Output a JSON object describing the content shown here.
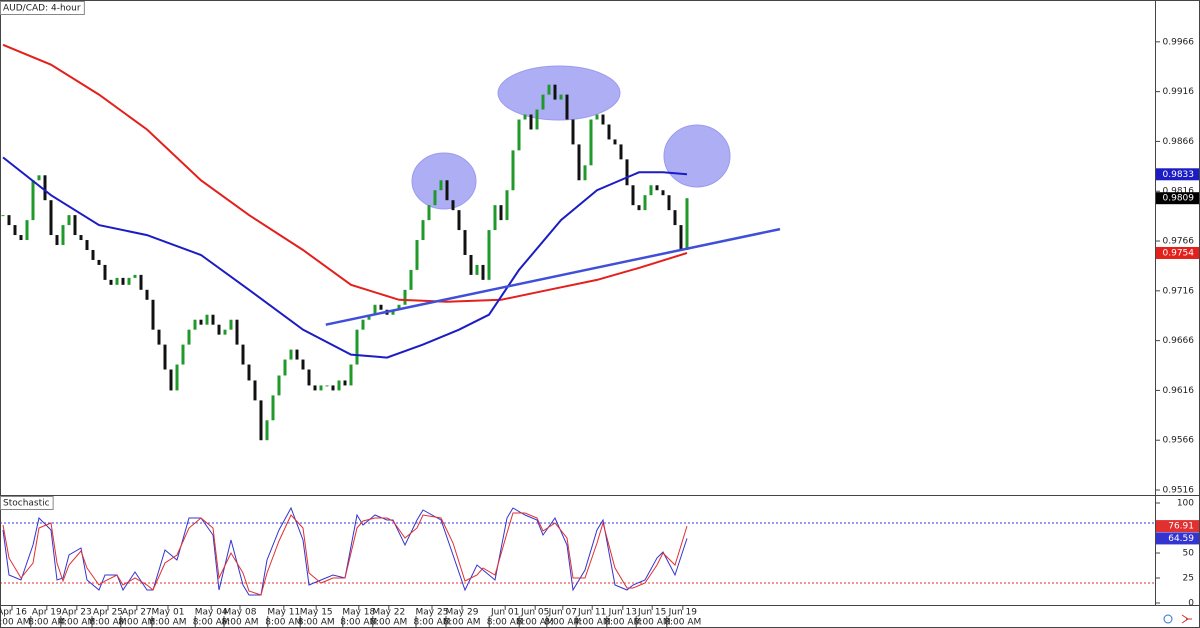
{
  "chart_data": [
    {
      "type": "candlestick",
      "title": "AUD/CAD: 4-hour",
      "close": [
        0.9792,
        0.9782,
        0.9772,
        0.9767,
        0.9787,
        0.9827,
        0.9832,
        0.9807,
        0.9772,
        0.9762,
        0.9782,
        0.9792,
        0.9772,
        0.9767,
        0.9757,
        0.9747,
        0.9742,
        0.9727,
        0.9722,
        0.9729,
        0.9722,
        0.9729,
        0.9732,
        0.9717,
        0.9707,
        0.9677,
        0.9662,
        0.9637,
        0.9616,
        0.9642,
        0.9662,
        0.9677,
        0.9687,
        0.9682,
        0.9692,
        0.9682,
        0.9672,
        0.9677,
        0.9687,
        0.9662,
        0.9642,
        0.9626,
        0.9606,
        0.9566,
        0.9586,
        0.9611,
        0.9631,
        0.9647,
        0.9657,
        0.9647,
        0.9637,
        0.9621,
        0.9616,
        0.9621,
        0.9621,
        0.9616,
        0.9626,
        0.9621,
        0.9642,
        0.9677,
        0.9687,
        0.9692,
        0.9702,
        0.9697,
        0.9692,
        0.9697,
        0.9702,
        0.9717,
        0.9737,
        0.9767,
        0.9787,
        0.9802,
        0.9817,
        0.9827,
        0.9807,
        0.9797,
        0.9777,
        0.9752,
        0.9732,
        0.9742,
        0.9727,
        0.9777,
        0.9802,
        0.9787,
        0.9817,
        0.9857,
        0.9888,
        0.9893,
        0.9878,
        0.9898,
        0.9913,
        0.9923,
        0.9908,
        0.9913,
        0.9888,
        0.9863,
        0.9827,
        0.9842,
        0.9888,
        0.9893,
        0.9883,
        0.9868,
        0.9863,
        0.9848,
        0.9822,
        0.9802,
        0.9797,
        0.9812,
        0.9822,
        0.9817,
        0.9812,
        0.9797,
        0.9782,
        0.9757,
        0.9809
      ],
      "up_color": "#1f9a2a",
      "down_color": "#111111",
      "series": [
        {
          "color": "#e3201b",
          "x": [
            0,
            8,
            16,
            24,
            33,
            41,
            50,
            58,
            66,
            74,
            83,
            91,
            99,
            106,
            114
          ],
          "values": [
            0.9963,
            0.9943,
            0.9913,
            0.9878,
            0.9827,
            0.9792,
            0.9757,
            0.9722,
            0.9707,
            0.9705,
            0.9707,
            0.9717,
            0.9727,
            0.9739,
            0.9754
          ]
        },
        {
          "color": "#1c1cc4",
          "x": [
            0,
            8,
            16,
            24,
            33,
            41,
            50,
            58,
            64,
            70,
            76,
            81,
            86,
            93,
            99,
            106,
            110,
            114
          ],
          "values": [
            0.985,
            0.9812,
            0.9782,
            0.9772,
            0.9752,
            0.9717,
            0.9677,
            0.9652,
            0.9649,
            0.9662,
            0.9677,
            0.9692,
            0.9737,
            0.9787,
            0.9817,
            0.9835,
            0.9835,
            0.9833
          ]
        },
        {
          "color": "#3f4fd8",
          "x": [
            53.8,
            129.5
          ],
          "values": [
            0.9682,
            0.9778
          ]
        }
      ],
      "xlim": [
        -0.5,
        192
      ],
      "ylim": [
        0.9511,
        1.0008
      ],
      "yticks": [
        0.9966,
        0.9916,
        0.9866,
        0.9816,
        0.9766,
        0.9716,
        0.9666,
        0.9616,
        0.9566,
        0.9516
      ],
      "xticks": [
        {
          "value": 1.5,
          "label": "Apr 16"
        },
        {
          "value": 7.3,
          "label": "Apr 19"
        },
        {
          "value": 12.3,
          "label": "Apr 23"
        },
        {
          "value": 17.5,
          "label": "Apr 25"
        },
        {
          "value": 22.3,
          "label": "Apr 27"
        },
        {
          "value": 27.5,
          "label": "May 01"
        },
        {
          "value": 34.7,
          "label": "May 04"
        },
        {
          "value": 39.5,
          "label": "May 08"
        },
        {
          "value": 46.8,
          "label": "May 11"
        },
        {
          "value": 52.2,
          "label": "May 15"
        },
        {
          "value": 59.3,
          "label": "May 18"
        },
        {
          "value": 64.3,
          "label": "May 22"
        },
        {
          "value": 71.5,
          "label": "May 25"
        },
        {
          "value": 76.5,
          "label": "May 29"
        },
        {
          "value": 83.7,
          "label": "Jun 01"
        },
        {
          "value": 88.7,
          "label": "Jun 05"
        },
        {
          "value": 93.3,
          "label": "Jun 07"
        },
        {
          "value": 98.2,
          "label": "Jun 11"
        },
        {
          "value": 103.3,
          "label": "Jun 13"
        },
        {
          "value": 108.2,
          "label": "Jun 15"
        },
        {
          "value": 113.3,
          "label": "Jun 19"
        }
      ],
      "xticks_time": [
        {
          "value": 1.5,
          "label": "8:00 AM"
        },
        {
          "value": 7.3,
          "label": "8:00 AM"
        },
        {
          "value": 12.3,
          "label": "4:00 AM"
        },
        {
          "value": 17.5,
          "label": "8:00 AM"
        },
        {
          "value": 22.3,
          "label": "8:00 AM"
        },
        {
          "value": 27.5,
          "label": "8:00 AM"
        },
        {
          "value": 34.7,
          "label": "8:00 AM"
        },
        {
          "value": 39.5,
          "label": "8:00 AM"
        },
        {
          "value": 46.8,
          "label": "8:00 AM"
        },
        {
          "value": 52.2,
          "label": "8:00 AM"
        },
        {
          "value": 59.3,
          "label": "8:00 AM"
        },
        {
          "value": 64.3,
          "label": "8:00 AM"
        },
        {
          "value": 71.5,
          "label": "8:00 AM"
        },
        {
          "value": 76.5,
          "label": "8:00 AM"
        },
        {
          "value": 83.7,
          "label": "8:00 AM"
        },
        {
          "value": 88.7,
          "label": "8:00 AM"
        },
        {
          "value": 93.3,
          "label": "8:00 AM"
        },
        {
          "value": 98.2,
          "label": "4:00 AM"
        },
        {
          "value": 103.3,
          "label": "8:00 AM"
        },
        {
          "value": 108.2,
          "label": "8:00 AM"
        },
        {
          "value": 113.3,
          "label": "8:00 AM"
        }
      ]
    },
    {
      "type": "line",
      "title": "Stochastic",
      "series": [
        {
          "color": "#3434d0",
          "x": [
            0,
            1,
            3,
            5,
            6,
            8,
            9,
            10,
            11,
            13,
            14,
            16,
            17,
            19,
            20,
            22,
            24,
            25,
            27,
            29,
            31,
            33,
            35,
            36,
            38,
            40,
            41,
            43,
            44,
            46,
            48,
            50,
            51,
            53,
            55,
            57,
            59,
            60,
            62,
            64,
            65,
            67,
            69,
            70,
            73,
            75,
            77,
            79,
            80,
            82,
            84,
            85,
            87,
            89,
            90,
            92,
            94,
            95,
            97,
            99,
            100,
            102,
            104,
            105,
            107,
            109,
            110,
            112,
            114
          ],
          "values": [
            73,
            28,
            23,
            58,
            85,
            73,
            23,
            25,
            48,
            55,
            23,
            13,
            28,
            28,
            13,
            31,
            13,
            13,
            53,
            43,
            85,
            85,
            68,
            13,
            63,
            18,
            8,
            8,
            43,
            73,
            95,
            63,
            18,
            23,
            28,
            25,
            88,
            78,
            88,
            83,
            83,
            58,
            83,
            93,
            83,
            48,
            13,
            38,
            33,
            23,
            85,
            95,
            88,
            83,
            68,
            85,
            58,
            13,
            33,
            73,
            83,
            18,
            13,
            18,
            23,
            45,
            51,
            28,
            64.59
          ]
        },
        {
          "color": "#e03030",
          "x": [
            0,
            1,
            3,
            5,
            6,
            8,
            9,
            10,
            11,
            13,
            14,
            16,
            17,
            19,
            20,
            22,
            24,
            25,
            27,
            29,
            31,
            33,
            35,
            36,
            38,
            40,
            41,
            43,
            44,
            46,
            48,
            50,
            51,
            53,
            55,
            57,
            59,
            60,
            62,
            64,
            65,
            67,
            69,
            70,
            73,
            75,
            77,
            79,
            80,
            82,
            84,
            85,
            87,
            89,
            90,
            92,
            94,
            95,
            97,
            99,
            100,
            102,
            104,
            105,
            107,
            109,
            110,
            112,
            114
          ],
          "values": [
            78,
            45,
            25,
            40,
            75,
            80,
            40,
            22,
            38,
            52,
            35,
            18,
            22,
            28,
            18,
            25,
            18,
            13,
            40,
            48,
            75,
            85,
            75,
            25,
            50,
            30,
            12,
            8,
            30,
            62,
            88,
            75,
            30,
            20,
            25,
            25,
            75,
            82,
            85,
            85,
            82,
            65,
            75,
            88,
            85,
            60,
            22,
            28,
            35,
            28,
            70,
            90,
            90,
            85,
            72,
            80,
            65,
            25,
            25,
            60,
            80,
            35,
            15,
            15,
            20,
            38,
            50,
            38,
            76.91
          ]
        }
      ],
      "levels": [
        {
          "value": 80,
          "color": "#3434d0"
        },
        {
          "value": 20,
          "color": "#e03030"
        }
      ],
      "xlim": [
        -0.5,
        192
      ],
      "ylim": [
        -2,
        108
      ],
      "yticks": [
        0,
        25,
        50,
        75,
        100
      ]
    }
  ]
}
